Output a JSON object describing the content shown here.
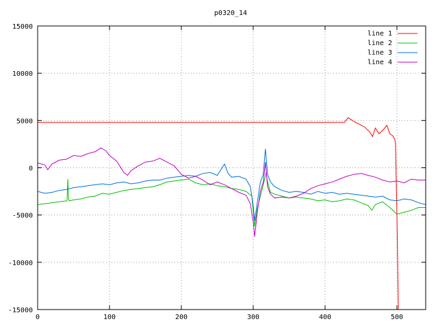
{
  "chart_data": {
    "type": "line",
    "title": "p0320_14",
    "xlabel": "",
    "ylabel": "",
    "xlim": [
      0,
      540
    ],
    "ylim": [
      -15000,
      15000
    ],
    "xticks": [
      0,
      100,
      200,
      300,
      400,
      500
    ],
    "yticks": [
      -15000,
      -10000,
      -5000,
      0,
      5000,
      10000,
      15000
    ],
    "grid": true,
    "legend": "top-right",
    "series": [
      {
        "name": "line 1",
        "color": "#ff0000",
        "points": [
          [
            0,
            4800
          ],
          [
            200,
            4800
          ],
          [
            427,
            4800
          ],
          [
            432,
            5300
          ],
          [
            440,
            4900
          ],
          [
            448,
            4600
          ],
          [
            455,
            4300
          ],
          [
            462,
            3800
          ],
          [
            466,
            3300
          ],
          [
            470,
            4200
          ],
          [
            475,
            3600
          ],
          [
            482,
            4100
          ],
          [
            486,
            4500
          ],
          [
            490,
            3600
          ],
          [
            494,
            3400
          ],
          [
            497,
            3000
          ],
          [
            498,
            2500
          ],
          [
            500,
            -5000
          ],
          [
            502,
            -15000
          ]
        ]
      },
      {
        "name": "line 2",
        "color": "#00c000",
        "points": [
          [
            0,
            -3900
          ],
          [
            10,
            -3800
          ],
          [
            20,
            -3700
          ],
          [
            30,
            -3600
          ],
          [
            41,
            -3500
          ],
          [
            42,
            -1200
          ],
          [
            43,
            -3300
          ],
          [
            44,
            -3500
          ],
          [
            50,
            -3400
          ],
          [
            60,
            -3300
          ],
          [
            70,
            -3100
          ],
          [
            80,
            -3000
          ],
          [
            90,
            -2700
          ],
          [
            100,
            -2800
          ],
          [
            110,
            -2600
          ],
          [
            120,
            -2400
          ],
          [
            130,
            -2300
          ],
          [
            140,
            -2200
          ],
          [
            150,
            -2100
          ],
          [
            160,
            -2000
          ],
          [
            170,
            -1800
          ],
          [
            180,
            -1500
          ],
          [
            190,
            -1400
          ],
          [
            200,
            -1300
          ],
          [
            210,
            -1200
          ],
          [
            220,
            -1600
          ],
          [
            230,
            -1800
          ],
          [
            240,
            -1700
          ],
          [
            250,
            -1900
          ],
          [
            260,
            -2000
          ],
          [
            270,
            -2200
          ],
          [
            280,
            -2300
          ],
          [
            290,
            -2500
          ],
          [
            298,
            -3000
          ],
          [
            302,
            -6200
          ],
          [
            306,
            -4200
          ],
          [
            310,
            -3000
          ],
          [
            314,
            -1800
          ],
          [
            318,
            -500
          ],
          [
            320,
            -1500
          ],
          [
            324,
            -2600
          ],
          [
            330,
            -2800
          ],
          [
            340,
            -3000
          ],
          [
            350,
            -3200
          ],
          [
            360,
            -3100
          ],
          [
            370,
            -3200
          ],
          [
            380,
            -3300
          ],
          [
            390,
            -3500
          ],
          [
            400,
            -3400
          ],
          [
            410,
            -3600
          ],
          [
            420,
            -3500
          ],
          [
            430,
            -3300
          ],
          [
            440,
            -3400
          ],
          [
            450,
            -3700
          ],
          [
            460,
            -4000
          ],
          [
            465,
            -4500
          ],
          [
            470,
            -3900
          ],
          [
            480,
            -3600
          ],
          [
            490,
            -4200
          ],
          [
            500,
            -4900
          ],
          [
            510,
            -4700
          ],
          [
            520,
            -4500
          ],
          [
            530,
            -4200
          ],
          [
            540,
            -4200
          ]
        ]
      },
      {
        "name": "line 3",
        "color": "#0070e0",
        "points": [
          [
            0,
            -2500
          ],
          [
            10,
            -2700
          ],
          [
            20,
            -2600
          ],
          [
            30,
            -2400
          ],
          [
            40,
            -2300
          ],
          [
            50,
            -2100
          ],
          [
            60,
            -2000
          ],
          [
            70,
            -1900
          ],
          [
            80,
            -1800
          ],
          [
            90,
            -1700
          ],
          [
            100,
            -1800
          ],
          [
            110,
            -1600
          ],
          [
            120,
            -1500
          ],
          [
            130,
            -1700
          ],
          [
            140,
            -1600
          ],
          [
            150,
            -1400
          ],
          [
            160,
            -1300
          ],
          [
            170,
            -1300
          ],
          [
            180,
            -1100
          ],
          [
            190,
            -1000
          ],
          [
            200,
            -900
          ],
          [
            210,
            -800
          ],
          [
            220,
            -900
          ],
          [
            230,
            -600
          ],
          [
            240,
            -500
          ],
          [
            250,
            -800
          ],
          [
            255,
            -200
          ],
          [
            260,
            400
          ],
          [
            265,
            -600
          ],
          [
            270,
            -1000
          ],
          [
            280,
            -900
          ],
          [
            290,
            -1200
          ],
          [
            296,
            -2000
          ],
          [
            300,
            -4000
          ],
          [
            302,
            -5600
          ],
          [
            306,
            -3500
          ],
          [
            310,
            -1500
          ],
          [
            314,
            -700
          ],
          [
            317,
            2000
          ],
          [
            320,
            -700
          ],
          [
            324,
            -1500
          ],
          [
            330,
            -2000
          ],
          [
            340,
            -2400
          ],
          [
            350,
            -2600
          ],
          [
            360,
            -2500
          ],
          [
            370,
            -2600
          ],
          [
            380,
            -2800
          ],
          [
            390,
            -2500
          ],
          [
            400,
            -2700
          ],
          [
            410,
            -2600
          ],
          [
            420,
            -2800
          ],
          [
            430,
            -2700
          ],
          [
            440,
            -2800
          ],
          [
            450,
            -2900
          ],
          [
            460,
            -3000
          ],
          [
            470,
            -3100
          ],
          [
            480,
            -3000
          ],
          [
            490,
            -3400
          ],
          [
            500,
            -3500
          ],
          [
            510,
            -3300
          ],
          [
            520,
            -3400
          ],
          [
            530,
            -3700
          ],
          [
            540,
            -3900
          ]
        ]
      },
      {
        "name": "line 4",
        "color": "#c000c0",
        "points": [
          [
            0,
            500
          ],
          [
            10,
            300
          ],
          [
            14,
            -200
          ],
          [
            20,
            400
          ],
          [
            30,
            800
          ],
          [
            40,
            900
          ],
          [
            50,
            1300
          ],
          [
            60,
            1200
          ],
          [
            70,
            1500
          ],
          [
            80,
            1700
          ],
          [
            88,
            2100
          ],
          [
            95,
            1800
          ],
          [
            100,
            1300
          ],
          [
            110,
            700
          ],
          [
            120,
            -500
          ],
          [
            125,
            -800
          ],
          [
            130,
            -300
          ],
          [
            140,
            200
          ],
          [
            150,
            600
          ],
          [
            160,
            700
          ],
          [
            170,
            1000
          ],
          [
            180,
            600
          ],
          [
            190,
            200
          ],
          [
            200,
            -700
          ],
          [
            210,
            -1100
          ],
          [
            220,
            -900
          ],
          [
            230,
            -1300
          ],
          [
            240,
            -1800
          ],
          [
            250,
            -1500
          ],
          [
            260,
            -1800
          ],
          [
            270,
            -2200
          ],
          [
            280,
            -2600
          ],
          [
            290,
            -2900
          ],
          [
            296,
            -3800
          ],
          [
            300,
            -5700
          ],
          [
            302,
            -7300
          ],
          [
            306,
            -4500
          ],
          [
            310,
            -2500
          ],
          [
            314,
            -1500
          ],
          [
            317,
            600
          ],
          [
            320,
            -2000
          ],
          [
            324,
            -2800
          ],
          [
            330,
            -3200
          ],
          [
            340,
            -3100
          ],
          [
            350,
            -3200
          ],
          [
            360,
            -3000
          ],
          [
            370,
            -2700
          ],
          [
            380,
            -2200
          ],
          [
            390,
            -1900
          ],
          [
            400,
            -1700
          ],
          [
            410,
            -1500
          ],
          [
            420,
            -1200
          ],
          [
            430,
            -900
          ],
          [
            440,
            -700
          ],
          [
            450,
            -600
          ],
          [
            460,
            -800
          ],
          [
            470,
            -1000
          ],
          [
            480,
            -1300
          ],
          [
            490,
            -1500
          ],
          [
            500,
            -1400
          ],
          [
            510,
            -1600
          ],
          [
            520,
            -1200
          ],
          [
            530,
            -1300
          ],
          [
            540,
            -1300
          ]
        ]
      }
    ]
  }
}
